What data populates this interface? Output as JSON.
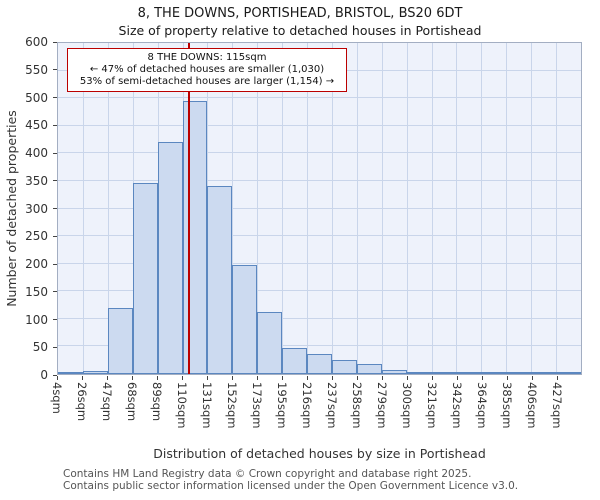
{
  "chart_data": {
    "type": "bar",
    "title": "8, THE DOWNS, PORTISHEAD, BRISTOL, BS20 6DT",
    "subtitle": "Size of property relative to detached houses in Portishead",
    "xlabel": "Distribution of detached houses by size in Portishead",
    "ylabel": "Number of detached properties",
    "categories": [
      "4sqm",
      "26sqm",
      "47sqm",
      "68sqm",
      "89sqm",
      "110sqm",
      "131sqm",
      "152sqm",
      "173sqm",
      "195sqm",
      "216sqm",
      "237sqm",
      "258sqm",
      "279sqm",
      "300sqm",
      "321sqm",
      "342sqm",
      "364sqm",
      "385sqm",
      "406sqm",
      "427sqm"
    ],
    "values": [
      3,
      5,
      120,
      347,
      420,
      495,
      340,
      197,
      113,
      48,
      36,
      25,
      18,
      8,
      2,
      2,
      3,
      1,
      1,
      3,
      2
    ],
    "ylim": [
      0,
      600
    ],
    "ytick_step": 50,
    "grid": "on",
    "legend": "none",
    "marker": {
      "value_sqm": 115
    },
    "annotation": {
      "line1": "8 THE DOWNS: 115sqm",
      "line2": "← 47% of detached houses are smaller (1,030)",
      "line3": "53% of semi-detached houses are larger (1,154) →"
    },
    "colors": {
      "bar_fill": "#ccdaf0",
      "bar_border": "#5b87c0",
      "marker_line": "#bb0000",
      "grid": "#c9d5ea",
      "plot_bg": "#eef2fb"
    }
  },
  "footer": {
    "line1": "Contains HM Land Registry data © Crown copyright and database right 2025.",
    "line2": "Contains public sector information licensed under the Open Government Licence v3.0."
  }
}
